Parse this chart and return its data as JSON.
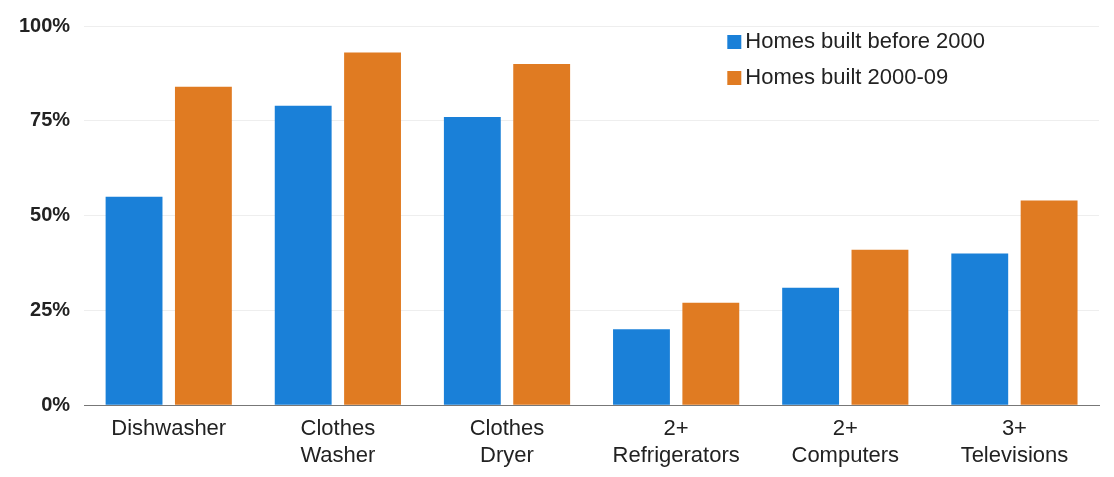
{
  "chart_data": {
    "type": "bar",
    "categories": [
      "Dishwasher",
      "Clothes Washer",
      "Clothes Dryer",
      "2+ Refrigerators",
      "2+ Computers",
      "3+ Televisions"
    ],
    "series": [
      {
        "name": "Homes built before 2000",
        "color": "#1a80d8",
        "values": [
          55,
          79,
          76,
          20,
          31,
          40
        ]
      },
      {
        "name": "Homes built 2000-09",
        "color": "#e07b22",
        "values": [
          84,
          93,
          90,
          27,
          41,
          54
        ]
      }
    ],
    "ylim": [
      0,
      100
    ],
    "yticks": [
      {
        "value": 0,
        "label": "0%"
      },
      {
        "value": 25,
        "label": "25%"
      },
      {
        "value": 50,
        "label": "50%"
      },
      {
        "value": 75,
        "label": "75%"
      },
      {
        "value": 100,
        "label": "100%"
      }
    ],
    "grid": "y",
    "legend": "top right"
  }
}
